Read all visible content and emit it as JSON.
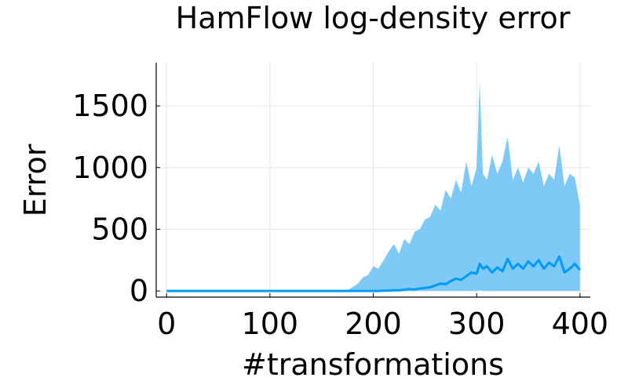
{
  "chart_data": {
    "type": "area",
    "title": "HamFlow log-density error",
    "xlabel": "#transformations",
    "ylabel": "Error",
    "xlim": [
      -10,
      410
    ],
    "ylim": [
      -50,
      1850
    ],
    "xticks": [
      0,
      100,
      200,
      300,
      400
    ],
    "yticks": [
      0,
      500,
      1000,
      1500
    ],
    "xtick_labels": [
      "0",
      "100",
      "200",
      "300",
      "400"
    ],
    "ytick_labels": [
      "0",
      "500",
      "1000",
      "1500"
    ],
    "grid": true,
    "legend": "none",
    "colors": {
      "line": "#009af9",
      "band": "#7fc9f6"
    },
    "series": [
      {
        "x": [
          0,
          20,
          40,
          60,
          80,
          100,
          120,
          140,
          160,
          175,
          180,
          185,
          190,
          195,
          200,
          205,
          210,
          215,
          220,
          225,
          230,
          235,
          240,
          245,
          250,
          255,
          260,
          265,
          270,
          275,
          280,
          285,
          290,
          295,
          300,
          303,
          306,
          310,
          315,
          320,
          325,
          330,
          335,
          340,
          345,
          350,
          355,
          360,
          365,
          370,
          375,
          380,
          385,
          390,
          395,
          400
        ],
        "mean": [
          0,
          0,
          0,
          0,
          0,
          0,
          0,
          0,
          0,
          0,
          0,
          0,
          0,
          0,
          0,
          0,
          2,
          3,
          5,
          6,
          10,
          15,
          12,
          20,
          25,
          30,
          45,
          60,
          55,
          80,
          100,
          90,
          120,
          150,
          140,
          220,
          180,
          200,
          150,
          190,
          160,
          260,
          180,
          220,
          180,
          240,
          200,
          250,
          180,
          230,
          200,
          280,
          150,
          180,
          220,
          170
        ],
        "upper": [
          0,
          0,
          0,
          0,
          0,
          0,
          0,
          0,
          0,
          5,
          30,
          60,
          110,
          130,
          200,
          180,
          250,
          320,
          380,
          300,
          420,
          380,
          480,
          500,
          580,
          600,
          700,
          650,
          820,
          750,
          900,
          800,
          1050,
          850,
          1000,
          1700,
          950,
          900,
          1100,
          950,
          1050,
          1250,
          900,
          1000,
          880,
          1000,
          950,
          1050,
          850,
          950,
          900,
          1180,
          850,
          950,
          920,
          690
        ],
        "lower": [
          0,
          0,
          0,
          0,
          0,
          0,
          0,
          0,
          0,
          0,
          0,
          0,
          0,
          0,
          0,
          0,
          0,
          0,
          0,
          0,
          0,
          0,
          0,
          0,
          0,
          0,
          0,
          0,
          0,
          0,
          0,
          0,
          0,
          0,
          0,
          5,
          0,
          0,
          0,
          0,
          0,
          0,
          0,
          0,
          0,
          0,
          0,
          0,
          0,
          0,
          0,
          0,
          0,
          0,
          0,
          0
        ]
      }
    ]
  }
}
